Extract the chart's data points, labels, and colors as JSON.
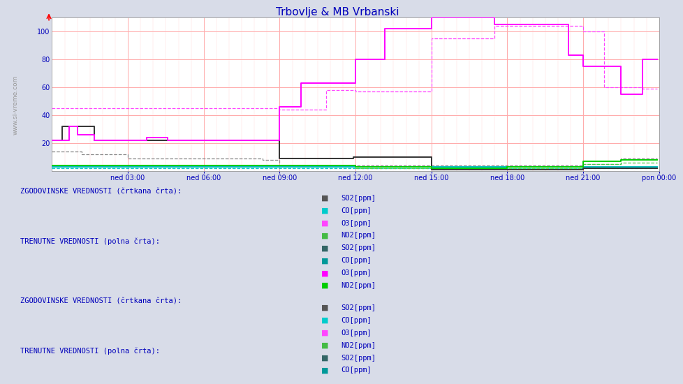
{
  "title": "Trbovlje & MB Vrbanski",
  "title_color": "#0000bb",
  "bg_color": "#d8dce8",
  "plot_bg": "#ffffff",
  "legend_bg": "#e8ecf8",
  "grid_major": "#ffaaaa",
  "grid_minor": "#ffdddd",
  "axis_color": "#0000bb",
  "text_color": "#0000bb",
  "xlim": [
    0,
    288
  ],
  "ylim": [
    0,
    110
  ],
  "yticks": [
    20,
    40,
    60,
    80,
    100
  ],
  "xtick_positions": [
    36,
    72,
    108,
    144,
    180,
    216,
    252,
    288
  ],
  "xtick_labels": [
    "ned 03:00",
    "ned 06:00",
    "ned 09:00",
    "ned 12:00",
    "ned 15:00",
    "ned 18:00",
    "ned 21:00",
    "pon 00:00"
  ],
  "watermark": "www.si-vreme.com",
  "legend_colors_solid": [
    "#006666",
    "#00bbbb",
    "#ff00ff",
    "#00cc00"
  ],
  "legend_colors_dash": [
    "#666666",
    "#00aaaa",
    "#ff44ff",
    "#00aa00"
  ],
  "legend_items": [
    "SO2[ppm]",
    "CO[ppm]",
    "O3[ppm]",
    "NO2[ppm]"
  ],
  "section_labels": [
    "ZGODOVINSKE VREDNOSTI (črtkana črta):",
    "TRENUTNE VREDNOSTI (polna črta):",
    "ZGODOVINSKE VREDNOSTI (črtkana črta):",
    "TRENUTNE VREDNOSTI (polna črta):"
  ],
  "colors": {
    "SO2_solid": "#333333",
    "CO_solid": "#00bbbb",
    "O3_solid": "#ff00ff",
    "NO2_solid": "#00cc00",
    "SO2_dash": "#888888",
    "CO_dash": "#00cccc",
    "O3_dash": "#ff44ff",
    "NO2_dash": "#44cc44"
  }
}
